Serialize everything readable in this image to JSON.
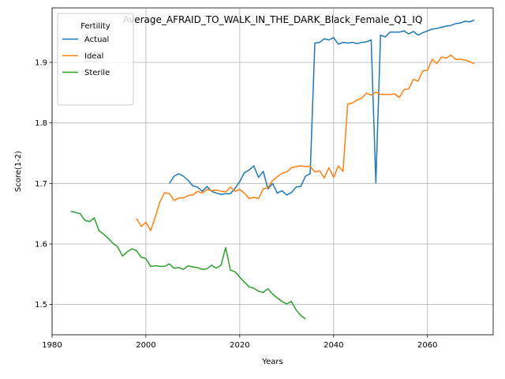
{
  "chart_data": {
    "type": "line",
    "title": "Average_AFRAID_TO_WALK_IN_THE_DARK_Black_Female_Q1_IQ",
    "xlabel": "Years",
    "ylabel": "Score(1-2)",
    "xlim": [
      1980,
      2074
    ],
    "ylim": [
      1.45,
      1.99
    ],
    "xticks": [
      1980,
      2000,
      2020,
      2040,
      2060
    ],
    "yticks": [
      1.5,
      1.6,
      1.7,
      1.8,
      1.9
    ],
    "xtick_labels": [
      "1980",
      "2000",
      "2020",
      "2040",
      "2060"
    ],
    "ytick_labels": [
      "1.5",
      "1.6",
      "1.7",
      "1.8",
      "1.9"
    ],
    "grid": true,
    "legend": {
      "title": "Fertility",
      "position": "top-left"
    },
    "series": [
      {
        "name": "Actual",
        "color": "#1f77b4",
        "x": [
          2005,
          2006,
          2007,
          2008,
          2009,
          2010,
          2011,
          2012,
          2013,
          2014,
          2015,
          2016,
          2017,
          2018,
          2019,
          2020,
          2021,
          2022,
          2023,
          2024,
          2025,
          2026,
          2027,
          2028,
          2029,
          2030,
          2031,
          2032,
          2033,
          2034,
          2035,
          2036,
          2037,
          2038,
          2039,
          2040,
          2041,
          2042,
          2043,
          2044,
          2045,
          2046,
          2047,
          2048,
          2049,
          2050,
          2051,
          2052,
          2053,
          2054,
          2055,
          2056,
          2057,
          2058,
          2059,
          2060,
          2061,
          2062,
          2063,
          2064,
          2065,
          2066,
          2067,
          2068,
          2069,
          2070
        ],
        "y": [
          1.7,
          1.712,
          1.716,
          1.712,
          1.705,
          1.696,
          1.694,
          1.687,
          1.695,
          1.687,
          1.684,
          1.682,
          1.683,
          1.683,
          1.692,
          1.703,
          1.718,
          1.722,
          1.729,
          1.71,
          1.72,
          1.691,
          1.7,
          1.684,
          1.688,
          1.681,
          1.685,
          1.694,
          1.695,
          1.712,
          1.716,
          1.932,
          1.933,
          1.939,
          1.937,
          1.941,
          1.93,
          1.933,
          1.932,
          1.933,
          1.931,
          1.933,
          1.934,
          1.937,
          1.701,
          1.945,
          1.942,
          1.95,
          1.95,
          1.95,
          1.952,
          1.947,
          1.951,
          1.945,
          1.949,
          1.952,
          1.955,
          1.956,
          1.958,
          1.96,
          1.961,
          1.964,
          1.965,
          1.968,
          1.967,
          1.97
        ]
      },
      {
        "name": "Ideal",
        "color": "#ff7f0e",
        "x": [
          1998,
          1999,
          2000,
          2001,
          2002,
          2003,
          2004,
          2005,
          2006,
          2007,
          2008,
          2009,
          2010,
          2011,
          2012,
          2013,
          2014,
          2015,
          2016,
          2017,
          2018,
          2019,
          2020,
          2021,
          2022,
          2023,
          2024,
          2025,
          2026,
          2027,
          2028,
          2029,
          2030,
          2031,
          2032,
          2033,
          2034,
          2035,
          2036,
          2037,
          2038,
          2039,
          2040,
          2041,
          2042,
          2043,
          2044,
          2045,
          2046,
          2047,
          2048,
          2049,
          2050,
          2051,
          2052,
          2053,
          2054,
          2055,
          2056,
          2057,
          2058,
          2059,
          2060,
          2061,
          2062,
          2063,
          2064,
          2065,
          2066,
          2067,
          2068,
          2069,
          2070
        ],
        "y": [
          1.642,
          1.629,
          1.636,
          1.622,
          1.645,
          1.67,
          1.685,
          1.683,
          1.672,
          1.676,
          1.676,
          1.68,
          1.681,
          1.687,
          1.684,
          1.69,
          1.688,
          1.689,
          1.687,
          1.686,
          1.694,
          1.687,
          1.69,
          1.684,
          1.675,
          1.677,
          1.675,
          1.691,
          1.693,
          1.705,
          1.711,
          1.717,
          1.719,
          1.726,
          1.728,
          1.729,
          1.728,
          1.728,
          1.719,
          1.721,
          1.709,
          1.726,
          1.71,
          1.729,
          1.72,
          1.831,
          1.833,
          1.838,
          1.841,
          1.849,
          1.846,
          1.851,
          1.847,
          1.847,
          1.847,
          1.848,
          1.842,
          1.855,
          1.856,
          1.872,
          1.869,
          1.886,
          1.887,
          1.905,
          1.898,
          1.909,
          1.907,
          1.912,
          1.905,
          1.905,
          1.904,
          1.901,
          1.898
        ]
      },
      {
        "name": "Sterile",
        "color": "#2ca02c",
        "x": [
          1984,
          1985,
          1986,
          1987,
          1988,
          1989,
          1990,
          1991,
          1992,
          1993,
          1994,
          1995,
          1996,
          1997,
          1998,
          1999,
          2000,
          2001,
          2002,
          2003,
          2004,
          2005,
          2006,
          2007,
          2008,
          2009,
          2010,
          2011,
          2012,
          2013,
          2014,
          2015,
          2016,
          2017,
          2018,
          2019,
          2020,
          2021,
          2022,
          2023,
          2024,
          2025,
          2026,
          2027,
          2028,
          2029,
          2030,
          2031,
          2032,
          2033,
          2034
        ],
        "y": [
          1.654,
          1.652,
          1.65,
          1.639,
          1.637,
          1.643,
          1.622,
          1.616,
          1.609,
          1.601,
          1.595,
          1.58,
          1.587,
          1.592,
          1.589,
          1.578,
          1.576,
          1.563,
          1.564,
          1.563,
          1.563,
          1.567,
          1.56,
          1.561,
          1.558,
          1.564,
          1.562,
          1.561,
          1.558,
          1.559,
          1.565,
          1.56,
          1.565,
          1.594,
          1.557,
          1.554,
          1.545,
          1.537,
          1.529,
          1.527,
          1.522,
          1.52,
          1.526,
          1.517,
          1.511,
          1.505,
          1.501,
          1.505,
          1.491,
          1.482,
          1.476
        ]
      }
    ]
  }
}
